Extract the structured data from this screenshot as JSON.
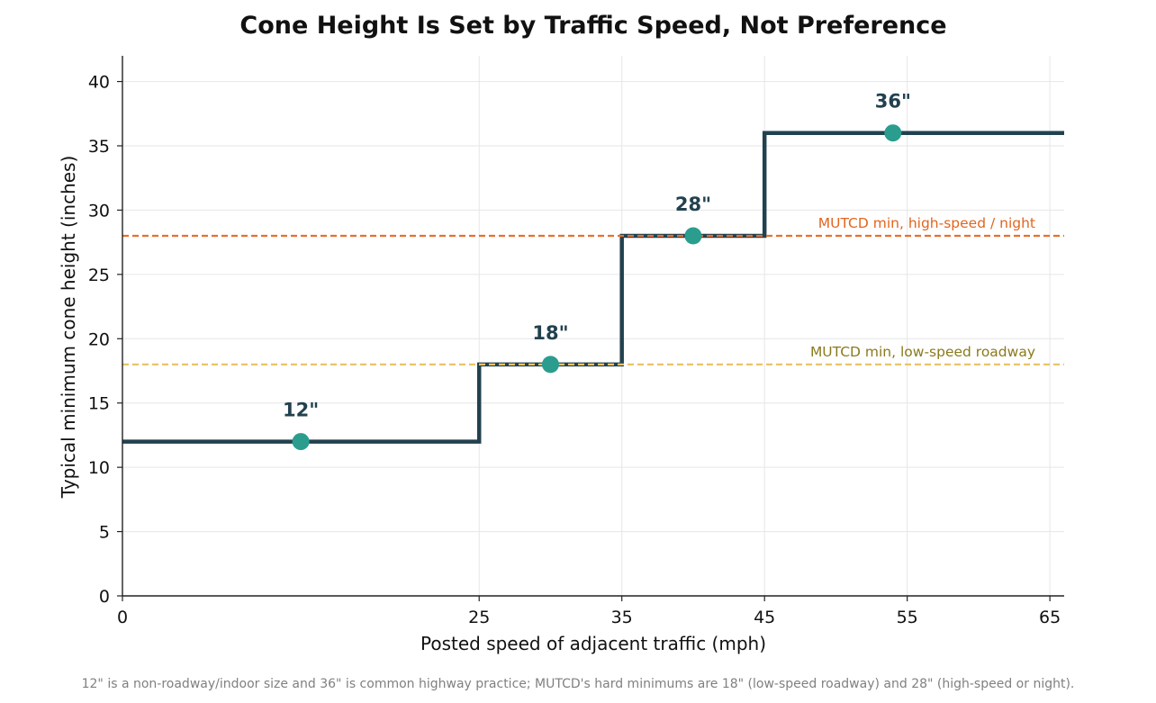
{
  "chart_data": {
    "type": "line",
    "title": "Cone Height Is Set by Traffic Speed, Not Preference",
    "xlabel": "Posted speed of adjacent traffic (mph)",
    "ylabel": "Typical minimum cone height (inches)",
    "xlim": [
      0,
      66
    ],
    "ylim": [
      0,
      42
    ],
    "x_ticks": [
      0,
      25,
      35,
      45,
      55,
      65
    ],
    "y_ticks": [
      0,
      5,
      10,
      15,
      20,
      25,
      30,
      35,
      40
    ],
    "grid": true,
    "step": {
      "x": [
        0,
        25,
        25,
        35,
        35,
        45,
        45,
        66
      ],
      "y": [
        12,
        12,
        18,
        18,
        28,
        28,
        36,
        36
      ],
      "color": "#22414f"
    },
    "points": [
      {
        "x": 12.5,
        "y": 12,
        "label": "12\""
      },
      {
        "x": 30,
        "y": 18,
        "label": "18\""
      },
      {
        "x": 40,
        "y": 28,
        "label": "28\""
      },
      {
        "x": 54,
        "y": 36,
        "label": "36\""
      }
    ],
    "point_color": "#2a9d8f",
    "reference_lines": [
      {
        "y": 28,
        "label": "MUTCD min, high-speed / night",
        "color": "#e76f2f",
        "label_color": "#e0661f"
      },
      {
        "y": 18,
        "label": "MUTCD min, low-speed roadway",
        "color": "#e9c46a",
        "label_color": "#8a7a1c"
      }
    ],
    "footnote": "12\" is a non-roadway/indoor size and 36\" is common highway practice; MUTCD's hard minimums are 18\" (low-speed roadway) and 28\" (high-speed or night)."
  }
}
